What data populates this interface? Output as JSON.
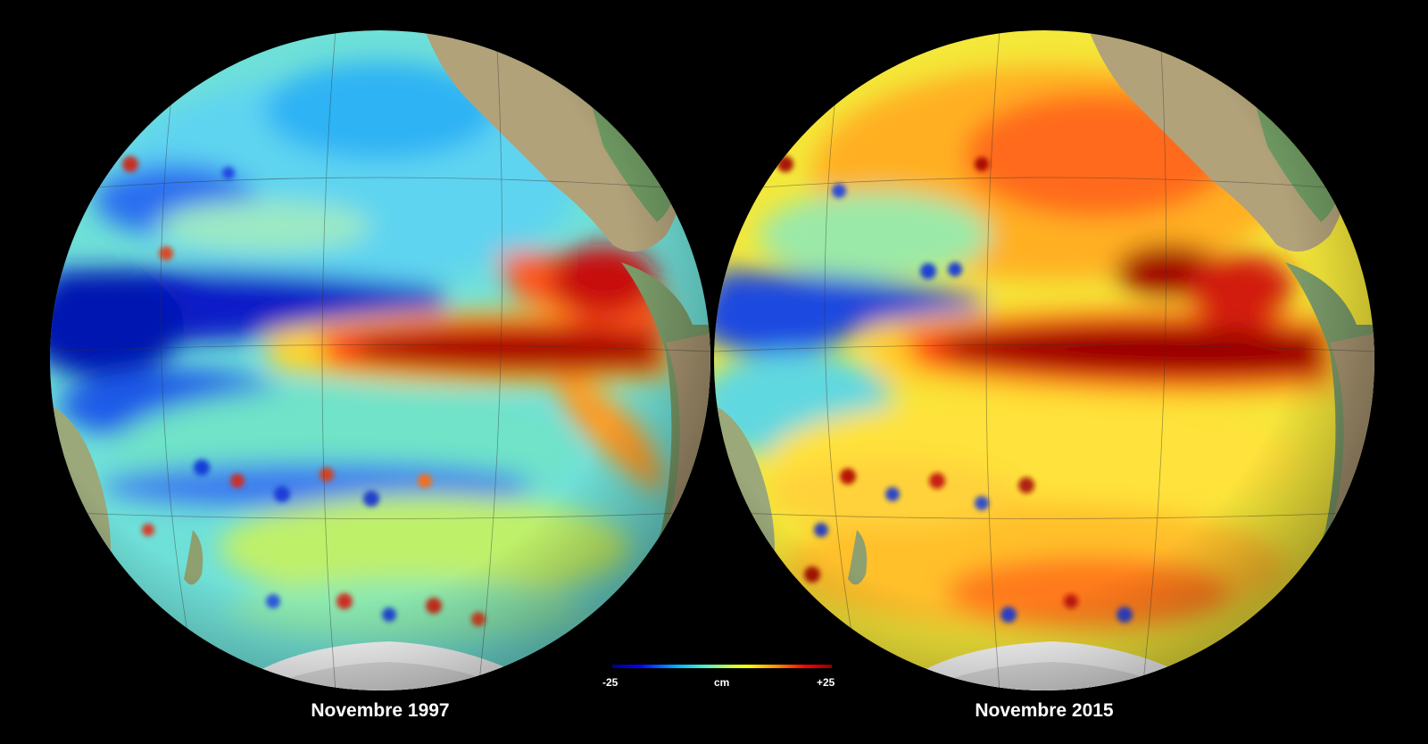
{
  "maps": [
    {
      "caption": "Novembre 1997"
    },
    {
      "caption": "Novembre 2015"
    }
  ],
  "colorbar": {
    "min_label": "-25",
    "unit_label": "cm",
    "max_label": "+25",
    "colors": [
      "#00008a",
      "#0000ff",
      "#00b7ff",
      "#4ff0c8",
      "#d6ff3a",
      "#ffff00",
      "#ff8c00",
      "#ff0000",
      "#8b0000"
    ]
  },
  "colors": {
    "background": "#000000",
    "land": "#b2a27a",
    "land_green": "#6f9a62",
    "ice": "#ffffff"
  }
}
